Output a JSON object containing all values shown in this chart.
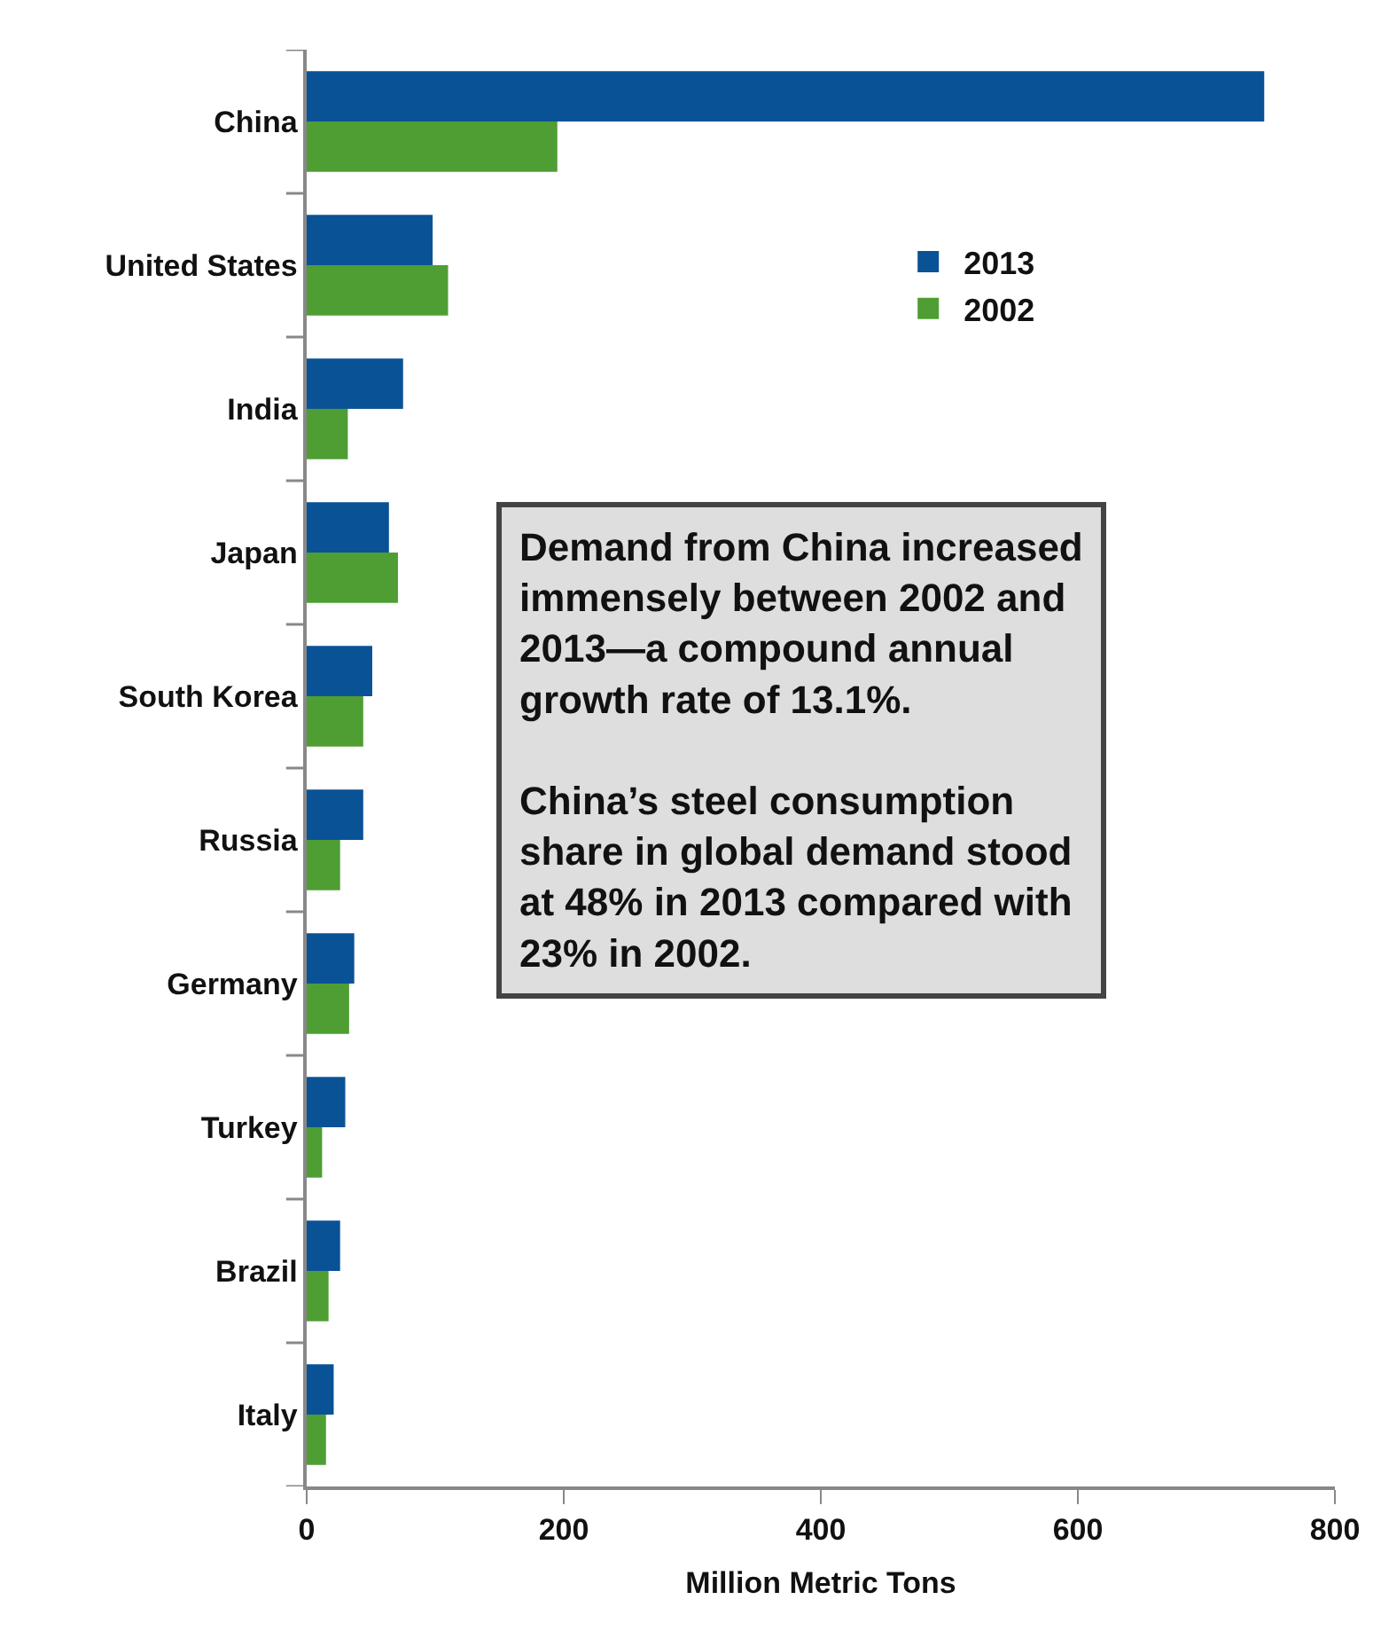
{
  "chart_data": {
    "type": "bar",
    "orientation": "horizontal",
    "categories": [
      "China",
      "United States",
      "India",
      "Japan",
      "South Korea",
      "Russia",
      "Germany",
      "Turkey",
      "Brazil",
      "Italy"
    ],
    "series": [
      {
        "name": "2013",
        "color": "#0a5296",
        "values": [
          745,
          98,
          75,
          64,
          51,
          44,
          37,
          30,
          26,
          21
        ]
      },
      {
        "name": "2002",
        "color": "#4e9e33",
        "values": [
          195,
          110,
          32,
          71,
          44,
          26,
          33,
          12,
          17,
          15
        ]
      }
    ],
    "xlabel": "Million Metric Tons",
    "xlim": [
      0,
      800
    ],
    "xticks": [
      0,
      200,
      400,
      600,
      800
    ],
    "annotations": [
      "Demand from China increased immensely between 2002 and 2013—a compound annual growth rate of 13.1%.\n\nChina’s steel consumption share in global demand stood at 48% in 2013 compared with 23% in 2002."
    ],
    "legend": "top right"
  }
}
